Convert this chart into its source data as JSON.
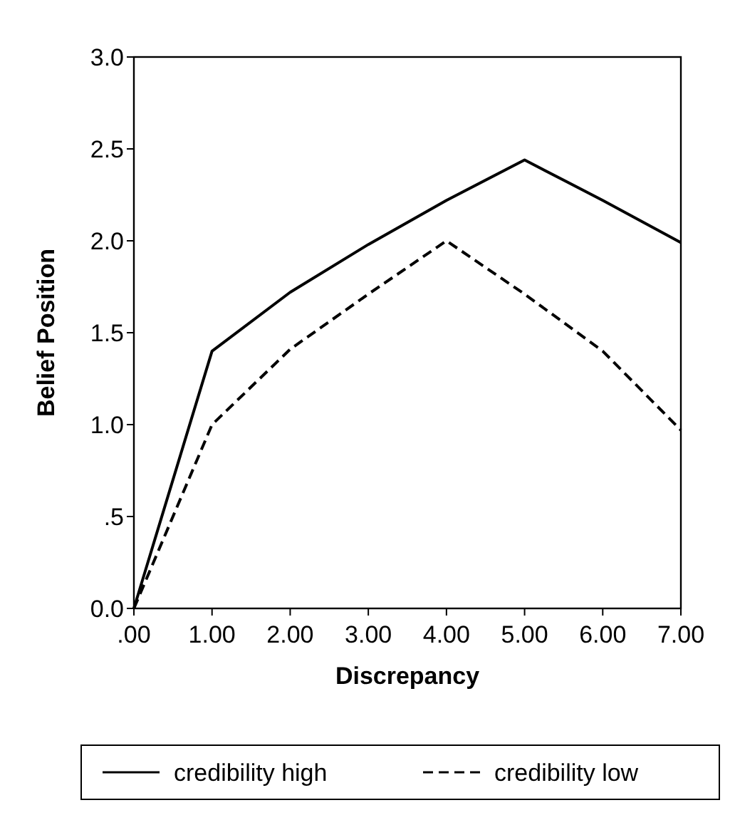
{
  "chart_data": {
    "type": "line",
    "xlabel": "Discrepancy",
    "ylabel": "Belief Position",
    "x": [
      0,
      1,
      2,
      3,
      4,
      5,
      6,
      7
    ],
    "series": [
      {
        "name": "credibility high",
        "color": "#000000",
        "line_style": "solid",
        "values": [
          0,
          1.4,
          1.72,
          1.98,
          2.22,
          2.44,
          2.22,
          1.99
        ]
      },
      {
        "name": "credibility low",
        "color": "#000000",
        "line_style": "dashed",
        "values": [
          0,
          1.0,
          1.41,
          1.71,
          2.0,
          1.71,
          1.4,
          0.97
        ]
      }
    ],
    "xlim": [
      0,
      7
    ],
    "xticks": [
      {
        "value": 0,
        "label": ".00"
      },
      {
        "value": 1,
        "label": "1.00"
      },
      {
        "value": 2,
        "label": "2.00"
      },
      {
        "value": 3,
        "label": "3.00"
      },
      {
        "value": 4,
        "label": "4.00"
      },
      {
        "value": 5,
        "label": "5.00"
      },
      {
        "value": 6,
        "label": "6.00"
      },
      {
        "value": 7,
        "label": "7.00"
      }
    ],
    "ylim": [
      0,
      3
    ],
    "yticks": [
      {
        "value": 0,
        "label": "0.0"
      },
      {
        "value": 0.5,
        "label": ".5"
      },
      {
        "value": 1,
        "label": "1.0"
      },
      {
        "value": 1.5,
        "label": "1.5"
      },
      {
        "value": 2,
        "label": "2.0"
      },
      {
        "value": 2.5,
        "label": "2.5"
      },
      {
        "value": 3,
        "label": "3.0"
      }
    ],
    "grid": false,
    "legend": "bottom",
    "marker": "none"
  }
}
